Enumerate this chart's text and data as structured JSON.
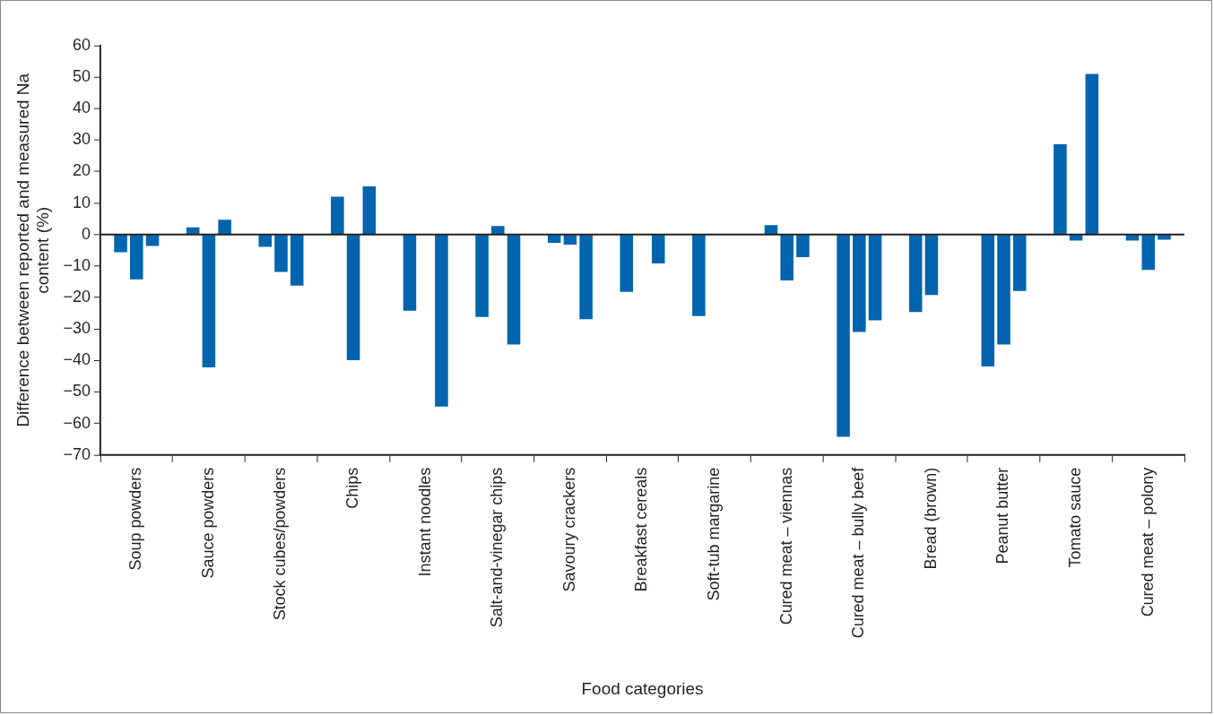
{
  "chart_data": {
    "type": "bar",
    "xlabel": "Food categories",
    "ylabel": "Difference between reported and measured Na content (%)",
    "categories": [
      "Soup powders",
      "Sauce powders",
      "Stock cubes/powders",
      "Chips",
      "Instant noodles",
      "Salt-and-vinegar chips",
      "Savoury crackers",
      "Breakfast cereals",
      "Soft-tub margarine",
      "Cured meat – viennas",
      "Cured meat – bully beef",
      "Bread (brown)",
      "Peanut butter",
      "Tomato sauce",
      "Cured meat – polony"
    ],
    "series": [
      {
        "color": "#0064ae",
        "values": [
          -5.6,
          2.3,
          -3.9,
          12,
          -24.2,
          -26.2,
          -2.6,
          -18.2,
          -25.9,
          3,
          -64.2,
          -24.6,
          -41.9,
          28.7,
          -1.9
        ]
      },
      {
        "color": "#0064ae",
        "values": [
          -14.2,
          -42.2,
          -11.9,
          -39.9,
          null,
          2.7,
          -3.2,
          0,
          null,
          -14.6,
          -30.9,
          -19.2,
          -34.9,
          -1.9,
          -11.2
        ]
      },
      {
        "color": "#0064ae",
        "values": [
          -3.6,
          4.7,
          -16.2,
          15.3,
          -54.6,
          -34.9,
          -26.9,
          -9.2,
          null,
          -7.2,
          -27.2,
          null,
          -17.9,
          51,
          -1.6
        ]
      }
    ],
    "ylim": [
      -70,
      60
    ],
    "yticks": [
      {
        "value": -70,
        "label": "−70"
      },
      {
        "value": -60,
        "label": "−60"
      },
      {
        "value": -50,
        "label": "−50"
      },
      {
        "value": -40,
        "label": "−40"
      },
      {
        "value": -30,
        "label": "−30"
      },
      {
        "value": -20,
        "label": "−20"
      },
      {
        "value": -10,
        "label": "−10"
      },
      0,
      10,
      20,
      30,
      40,
      50,
      60
    ],
    "ref_lines": [
      {
        "axis": "y",
        "value": 0,
        "color": "#231f20"
      }
    ],
    "grid": false,
    "legend": false
  }
}
